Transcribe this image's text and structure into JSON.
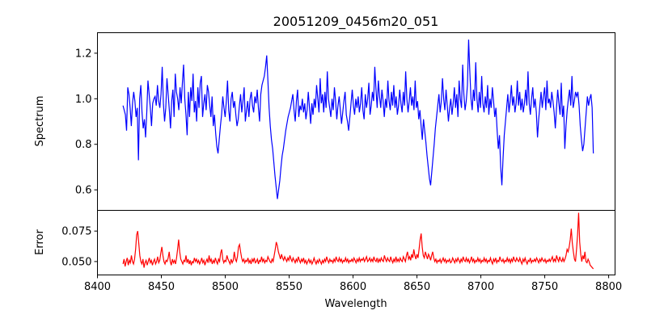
{
  "chart_data": [
    {
      "type": "line",
      "title": "20051209_0456m20_051",
      "ylabel": "Spectrum",
      "xlabel": "",
      "xlim": [
        8400,
        8805
      ],
      "ylim": [
        0.51,
        1.29
      ],
      "yticks": [
        0.6,
        0.8,
        1.0,
        1.2
      ],
      "ytick_labels": [
        "0.6",
        "0.8",
        "1.0",
        "1.2"
      ],
      "grid": false,
      "x_start": 8420,
      "x_end": 8788,
      "series": [
        {
          "color": "#0000ff",
          "values": [
            0.97,
            0.95,
            0.93,
            0.86,
            1.05,
            1.02,
            0.96,
            0.88,
            0.98,
            1.03,
            0.99,
            0.92,
            0.96,
            0.73,
            1.0,
            1.06,
            0.94,
            0.87,
            0.91,
            0.83,
            0.94,
            1.08,
            1.02,
            0.96,
            0.88,
            0.98,
            1.0,
            1.01,
            0.97,
            1.06,
            0.99,
            0.96,
            1.02,
            1.14,
            0.98,
            0.9,
            0.96,
            1.09,
            1.02,
            0.95,
            0.87,
            0.99,
            1.04,
            0.92,
            1.11,
            1.03,
            1.0,
            0.95,
            1.05,
            0.98,
            1.07,
            1.15,
            1.0,
            0.93,
            0.84,
            1.03,
            0.92,
            1.05,
            0.99,
            1.11,
            0.94,
            0.99,
            0.9,
            1.05,
            0.96,
            1.07,
            1.1,
            0.92,
            0.98,
            1.02,
            0.95,
            1.06,
            1.03,
            0.97,
            0.92,
            1.01,
            0.88,
            0.93,
            0.85,
            0.79,
            0.76,
            0.82,
            0.88,
            0.93,
            1.01,
            0.96,
            0.92,
            0.99,
            1.08,
            0.95,
            0.9,
            1.0,
            1.03,
            0.96,
            0.99,
            0.93,
            0.88,
            0.91,
            0.97,
            1.02,
            0.94,
            0.99,
            1.05,
            0.9,
            0.95,
            0.99,
            0.92,
            1.0,
            1.03,
            0.97,
            0.94,
            1.01,
            0.98,
            1.04,
            0.96,
            0.9,
            1.02,
            1.06,
            1.08,
            1.1,
            1.14,
            1.19,
            1.08,
            0.96,
            0.88,
            0.82,
            0.78,
            0.72,
            0.66,
            0.61,
            0.56,
            0.6,
            0.64,
            0.7,
            0.75,
            0.78,
            0.82,
            0.86,
            0.89,
            0.92,
            0.94,
            0.96,
            0.99,
            1.02,
            0.95,
            0.9,
            0.99,
            1.04,
            0.92,
            0.97,
            0.95,
            1.0,
            0.94,
            0.98,
            0.91,
            0.95,
            1.03,
            0.96,
            0.89,
            0.98,
            0.93,
            1.0,
            0.96,
            1.06,
            1.0,
            0.94,
            1.09,
            0.98,
            1.02,
            0.94,
            1.03,
            0.96,
            1.12,
            1.0,
            0.96,
            0.92,
            1.0,
            0.95,
            1.05,
            0.99,
            0.91,
            0.97,
            1.01,
            0.95,
            0.89,
            0.94,
            0.99,
            1.03,
            0.93,
            0.9,
            0.86,
            0.92,
            0.98,
            1.04,
            0.97,
            0.93,
            1.0,
            0.96,
            1.01,
            0.94,
            0.98,
            1.05,
            0.95,
            0.91,
            1.02,
            0.96,
            1.0,
            1.07,
            0.93,
            0.97,
            1.03,
            0.99,
            1.14,
            1.04,
            0.96,
            1.08,
            1.01,
            0.96,
            1.04,
            0.99,
            0.92,
            1.0,
            0.96,
            1.08,
            0.99,
            0.95,
            1.03,
            0.97,
            1.06,
            0.96,
            1.01,
            0.93,
            0.97,
            1.04,
            0.98,
            0.94,
            1.03,
            0.97,
            1.12,
            1.0,
            0.94,
            0.99,
            1.05,
            0.97,
            1.01,
            0.95,
            1.08,
            0.96,
            0.99,
            0.91,
            0.95,
            0.88,
            0.82,
            0.91,
            0.86,
            0.81,
            0.75,
            0.7,
            0.65,
            0.62,
            0.68,
            0.74,
            0.8,
            0.87,
            0.92,
            0.97,
            1.02,
            0.94,
            0.99,
            1.09,
            1.0,
            0.95,
            1.04,
            0.97,
            0.9,
            0.96,
            1.0,
            0.93,
            0.98,
            1.05,
            0.96,
            1.02,
            0.92,
            1.08,
            1.0,
            0.96,
            1.15,
            1.02,
            0.95,
            0.99,
            1.06,
            1.26,
            1.12,
            1.0,
            0.95,
            1.04,
            0.99,
            1.16,
            1.0,
            0.94,
            1.03,
            0.96,
            1.1,
            0.98,
            0.94,
            1.01,
            0.96,
            1.06,
            0.93,
            1.0,
            0.96,
            1.05,
            0.99,
            0.92,
            0.96,
            0.86,
            0.78,
            0.84,
            0.7,
            0.62,
            0.74,
            0.84,
            0.9,
            0.96,
            1.02,
            0.94,
            0.99,
            1.06,
            0.97,
            1.01,
            0.94,
            0.98,
            1.08,
            0.97,
            1.03,
            0.95,
            1.0,
            0.94,
            0.98,
            1.04,
            0.97,
            1.12,
            0.98,
            0.93,
            1.0,
            1.05,
            0.96,
            1.0,
            0.94,
            0.83,
            0.91,
            0.97,
            1.03,
            0.96,
            1.01,
            1.05,
            0.95,
            1.08,
            0.98,
            1.0,
            0.96,
            1.03,
            0.99,
            0.94,
            0.87,
            0.96,
            1.04,
            0.98,
            0.93,
            1.07,
            0.92,
            0.97,
            0.78,
            0.88,
            0.95,
            1.0,
            1.04,
            0.97,
            1.1,
            0.96,
            0.99,
            1.03,
            1.01,
            1.03,
            0.97,
            0.88,
            0.82,
            0.77,
            0.8,
            0.87,
            0.94,
            1.01,
            0.97,
            1.0,
            1.02,
            0.96,
            0.76
          ]
        }
      ]
    },
    {
      "type": "line",
      "title": "",
      "ylabel": "Error",
      "xlabel": "Wavelength",
      "xlim": [
        8400,
        8805
      ],
      "ylim": [
        0.039,
        0.092
      ],
      "yticks": [
        0.05,
        0.075
      ],
      "ytick_labels": [
        "0.050",
        "0.075"
      ],
      "xticks": [
        8400,
        8450,
        8500,
        8550,
        8600,
        8650,
        8700,
        8750,
        8800
      ],
      "xtick_labels": [
        "8400",
        "8450",
        "8500",
        "8550",
        "8600",
        "8650",
        "8700",
        "8750",
        "8800"
      ],
      "grid": false,
      "x_start": 8420,
      "x_end": 8788,
      "series": [
        {
          "color": "#ff0000",
          "values": [
            0.048,
            0.052,
            0.046,
            0.05,
            0.053,
            0.047,
            0.051,
            0.049,
            0.055,
            0.05,
            0.048,
            0.052,
            0.06,
            0.072,
            0.075,
            0.065,
            0.055,
            0.05,
            0.048,
            0.052,
            0.045,
            0.049,
            0.051,
            0.047,
            0.05,
            0.053,
            0.049,
            0.051,
            0.047,
            0.05,
            0.052,
            0.048,
            0.05,
            0.054,
            0.049,
            0.051,
            0.057,
            0.062,
            0.055,
            0.05,
            0.048,
            0.051,
            0.05,
            0.053,
            0.058,
            0.05,
            0.047,
            0.052,
            0.049,
            0.051,
            0.048,
            0.053,
            0.06,
            0.068,
            0.058,
            0.052,
            0.05,
            0.048,
            0.051,
            0.05,
            0.055,
            0.049,
            0.052,
            0.048,
            0.051,
            0.047,
            0.05,
            0.049,
            0.053,
            0.05,
            0.052,
            0.049,
            0.051,
            0.048,
            0.05,
            0.053,
            0.049,
            0.051,
            0.047,
            0.05,
            0.052,
            0.049,
            0.055,
            0.05,
            0.052,
            0.048,
            0.051,
            0.049,
            0.053,
            0.05,
            0.048,
            0.052,
            0.05,
            0.057,
            0.06,
            0.052,
            0.049,
            0.051,
            0.05,
            0.055,
            0.052,
            0.05,
            0.048,
            0.052,
            0.049,
            0.051,
            0.058,
            0.052,
            0.05,
            0.054,
            0.062,
            0.064,
            0.058,
            0.053,
            0.05,
            0.052,
            0.049,
            0.051,
            0.05,
            0.053,
            0.049,
            0.051,
            0.048,
            0.052,
            0.05,
            0.053,
            0.049,
            0.05,
            0.052,
            0.048,
            0.051,
            0.05,
            0.054,
            0.05,
            0.052,
            0.049,
            0.051,
            0.05,
            0.054,
            0.052,
            0.05,
            0.049,
            0.052,
            0.05,
            0.055,
            0.06,
            0.066,
            0.063,
            0.058,
            0.055,
            0.052,
            0.056,
            0.053,
            0.051,
            0.054,
            0.052,
            0.05,
            0.053,
            0.051,
            0.055,
            0.052,
            0.05,
            0.053,
            0.051,
            0.049,
            0.052,
            0.05,
            0.054,
            0.051,
            0.049,
            0.052,
            0.05,
            0.053,
            0.049,
            0.051,
            0.048,
            0.05,
            0.052,
            0.049,
            0.051,
            0.048,
            0.05,
            0.053,
            0.05,
            0.048,
            0.051,
            0.049,
            0.052,
            0.05,
            0.048,
            0.051,
            0.049,
            0.052,
            0.05,
            0.054,
            0.051,
            0.049,
            0.052,
            0.05,
            0.051,
            0.049,
            0.052,
            0.05,
            0.054,
            0.051,
            0.05,
            0.053,
            0.05,
            0.052,
            0.049,
            0.051,
            0.05,
            0.053,
            0.05,
            0.052,
            0.049,
            0.051,
            0.05,
            0.052,
            0.05,
            0.053,
            0.051,
            0.049,
            0.052,
            0.05,
            0.053,
            0.05,
            0.052,
            0.051,
            0.053,
            0.05,
            0.052,
            0.054,
            0.05,
            0.051,
            0.053,
            0.05,
            0.052,
            0.05,
            0.054,
            0.051,
            0.05,
            0.053,
            0.049,
            0.052,
            0.05,
            0.053,
            0.051,
            0.05,
            0.055,
            0.052,
            0.05,
            0.053,
            0.051,
            0.05,
            0.054,
            0.051,
            0.049,
            0.052,
            0.05,
            0.054,
            0.05,
            0.052,
            0.05,
            0.053,
            0.051,
            0.05,
            0.054,
            0.052,
            0.05,
            0.055,
            0.058,
            0.052,
            0.054,
            0.051,
            0.056,
            0.053,
            0.06,
            0.055,
            0.052,
            0.056,
            0.053,
            0.06,
            0.068,
            0.073,
            0.062,
            0.055,
            0.053,
            0.058,
            0.055,
            0.052,
            0.056,
            0.054,
            0.051,
            0.055,
            0.058,
            0.053,
            0.05,
            0.052,
            0.049,
            0.051,
            0.05,
            0.052,
            0.049,
            0.051,
            0.053,
            0.05,
            0.052,
            0.049,
            0.051,
            0.05,
            0.052,
            0.049,
            0.05,
            0.053,
            0.051,
            0.049,
            0.052,
            0.05,
            0.053,
            0.051,
            0.049,
            0.052,
            0.05,
            0.054,
            0.051,
            0.05,
            0.053,
            0.05,
            0.052,
            0.049,
            0.051,
            0.054,
            0.05,
            0.052,
            0.049,
            0.051,
            0.05,
            0.053,
            0.05,
            0.052,
            0.049,
            0.051,
            0.05,
            0.053,
            0.05,
            0.052,
            0.049,
            0.051,
            0.05,
            0.053,
            0.05,
            0.048,
            0.052,
            0.05,
            0.053,
            0.049,
            0.051,
            0.05,
            0.054,
            0.051,
            0.05,
            0.052,
            0.049,
            0.051,
            0.05,
            0.053,
            0.05,
            0.052,
            0.049,
            0.052,
            0.05,
            0.054,
            0.051,
            0.05,
            0.053,
            0.051,
            0.05,
            0.053,
            0.05,
            0.048,
            0.052,
            0.05,
            0.053,
            0.05,
            0.048,
            0.051,
            0.05,
            0.053,
            0.049,
            0.051,
            0.05,
            0.052,
            0.05,
            0.053,
            0.051,
            0.049,
            0.052,
            0.05,
            0.053,
            0.051,
            0.05,
            0.052,
            0.049,
            0.051,
            0.05,
            0.052,
            0.05,
            0.052,
            0.054,
            0.05,
            0.052,
            0.05,
            0.055,
            0.052,
            0.05,
            0.054,
            0.051,
            0.05,
            0.053,
            0.05,
            0.052,
            0.055,
            0.06,
            0.058,
            0.062,
            0.068,
            0.077,
            0.065,
            0.058,
            0.052,
            0.05,
            0.06,
            0.072,
            0.09,
            0.066,
            0.056,
            0.05,
            0.055,
            0.052,
            0.058,
            0.05,
            0.049,
            0.052,
            0.05,
            0.047,
            0.046,
            0.045,
            0.044
          ]
        }
      ]
    }
  ]
}
